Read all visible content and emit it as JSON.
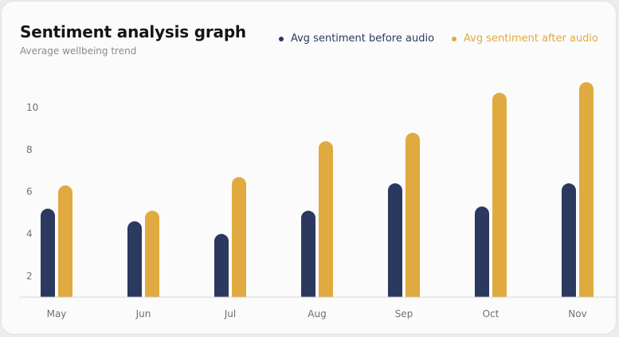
{
  "colors": {
    "before": "#2b395e",
    "after": "#e0aa40",
    "axis": "#d6d6d6",
    "tick": "#707070"
  },
  "chart_data": {
    "type": "bar",
    "title": "Sentiment analysis graph",
    "subtitle": "Average wellbeing trend",
    "categories": [
      "May",
      "Jun",
      "Jul",
      "Aug",
      "Sep",
      "Oct",
      "Nov"
    ],
    "series": [
      {
        "name": "Avg sentiment before audio",
        "values": [
          5.2,
          4.6,
          4.0,
          5.1,
          6.4,
          5.3,
          6.4
        ]
      },
      {
        "name": "Avg sentiment after audio",
        "values": [
          6.3,
          5.1,
          6.7,
          8.4,
          8.8,
          10.7,
          11.2
        ]
      }
    ],
    "yticks": [
      2,
      4,
      6,
      8,
      10
    ],
    "ylim": [
      1,
      12
    ],
    "grid": false,
    "legend": "top-right"
  }
}
